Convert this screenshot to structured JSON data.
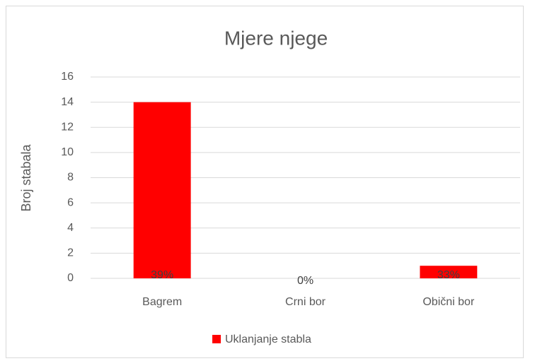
{
  "chart_data": {
    "type": "bar",
    "title": "Mjere njege",
    "y_label": "Broj stabala",
    "categories": [
      "Bagrem",
      "Crni bor",
      "Obični bor"
    ],
    "series": [
      {
        "name": "Uklanjanje stabla",
        "color": "#ff0000",
        "values": [
          14,
          0,
          1
        ]
      }
    ],
    "annotations": [
      "39%",
      "0%",
      "33%"
    ],
    "ylim": [
      0,
      16
    ],
    "yticks": [
      0,
      2,
      4,
      6,
      8,
      10,
      12,
      14,
      16
    ],
    "grid": true,
    "legend": "bottom"
  }
}
